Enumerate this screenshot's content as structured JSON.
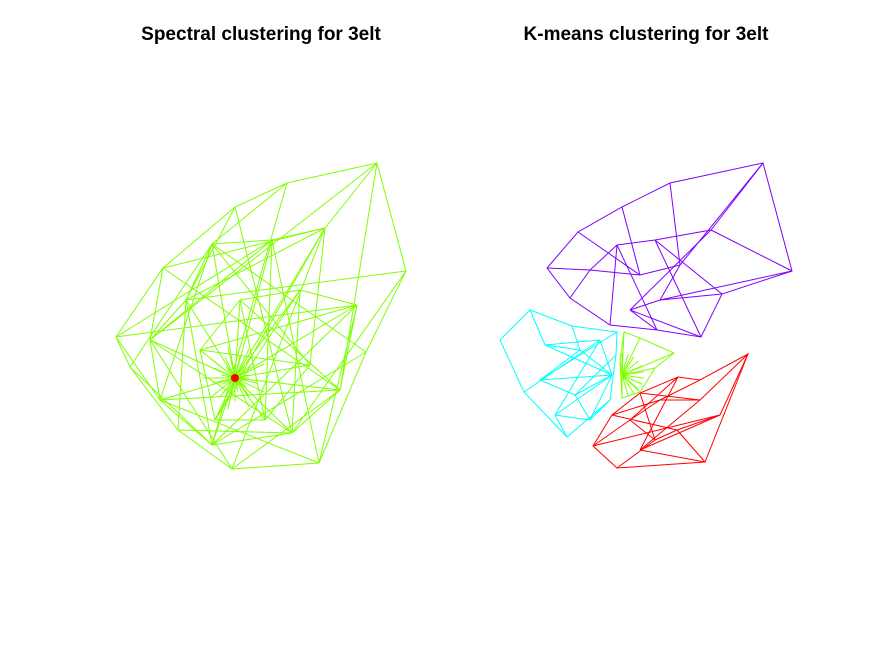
{
  "figure": {
    "left_title": "Spectral clustering for 3elt",
    "right_title": "K-means clustering for 3elt"
  },
  "colors": {
    "green": "#80ff00",
    "red": "#ff0000",
    "purple": "#8000ff",
    "cyan": "#00ffff",
    "background": "#ffffff"
  },
  "legend": {
    "left_panel_clusters": [
      "green",
      "red"
    ],
    "right_panel_clusters": [
      "purple",
      "cyan",
      "green",
      "red"
    ]
  }
}
